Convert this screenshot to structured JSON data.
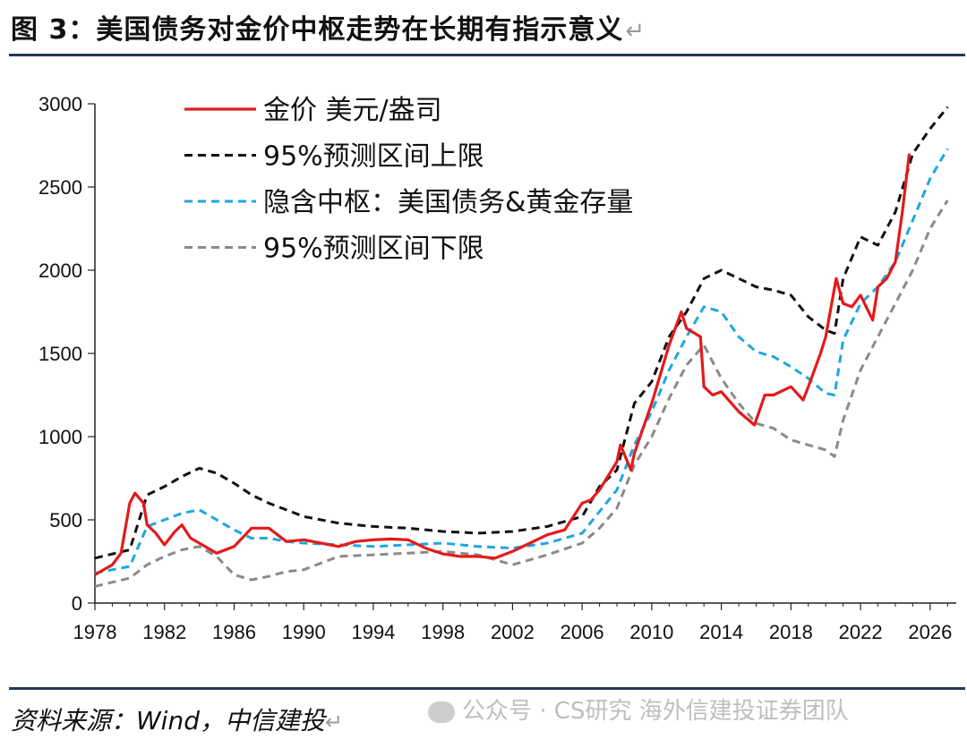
{
  "page": {
    "title": "图 3：美国债务对金价中枢走势在长期有指示意义",
    "title_return_mark": "↵",
    "source": "资料来源：Wind，中信建投",
    "source_return_mark": "↵",
    "watermark": "公众号 · CS研究 海外信建投证券团队"
  },
  "chart_data": {
    "type": "line",
    "title": "",
    "xlabel": "",
    "ylabel": "",
    "xlim": [
      1978,
      2027.5
    ],
    "ylim": [
      0,
      3000
    ],
    "x_ticks": [
      1978,
      1982,
      1986,
      1990,
      1994,
      1998,
      2002,
      2006,
      2010,
      2014,
      2018,
      2022,
      2026
    ],
    "y_ticks": [
      0,
      500,
      1000,
      1500,
      2000,
      2500,
      3000
    ],
    "grid": false,
    "legend_position": "top-center",
    "series": [
      {
        "name": "金价 美元/盎司",
        "color": "#e31a1c",
        "style": "solid",
        "x": [
          1978,
          1979,
          1979.5,
          1980,
          1980.3,
          1980.8,
          1981,
          1981.5,
          1982,
          1982.6,
          1983,
          1983.5,
          1984,
          1985,
          1986,
          1987,
          1988,
          1989,
          1990,
          1991,
          1992,
          1993,
          1994,
          1995,
          1996,
          1997,
          1998,
          1999,
          2000,
          2001,
          2002,
          2003,
          2004,
          2005,
          2006,
          2006.5,
          2007,
          2008,
          2008.2,
          2008.8,
          2009,
          2010,
          2011,
          2011.7,
          2012,
          2012.8,
          2013,
          2013.5,
          2014,
          2015,
          2015.9,
          2016.5,
          2017,
          2018,
          2018.7,
          2019,
          2019.7,
          2020,
          2020.6,
          2021,
          2021.5,
          2022,
          2022.7,
          2023,
          2023.5,
          2024,
          2024.4,
          2024.8
        ],
        "values": [
          170,
          230,
          300,
          600,
          660,
          600,
          470,
          420,
          350,
          430,
          470,
          390,
          360,
          300,
          340,
          450,
          450,
          370,
          380,
          360,
          340,
          370,
          380,
          385,
          380,
          330,
          295,
          280,
          280,
          270,
          310,
          360,
          410,
          440,
          600,
          620,
          680,
          850,
          950,
          800,
          900,
          1200,
          1550,
          1750,
          1650,
          1600,
          1300,
          1250,
          1270,
          1150,
          1070,
          1250,
          1250,
          1300,
          1220,
          1300,
          1500,
          1600,
          1950,
          1800,
          1780,
          1850,
          1700,
          1900,
          1950,
          2050,
          2350,
          2700
        ]
      },
      {
        "name": "95%预测区间上限",
        "color": "#111111",
        "style": "dashed",
        "x": [
          1978,
          1980,
          1981,
          1982,
          1983,
          1984,
          1985,
          1986,
          1987,
          1988,
          1989,
          1990,
          1992,
          1994,
          1996,
          1998,
          2000,
          2002,
          2004,
          2006,
          2007,
          2008,
          2009,
          2010,
          2011,
          2012,
          2013,
          2014,
          2015,
          2016,
          2017,
          2018,
          2019,
          2020,
          2020.5,
          2021,
          2022,
          2023,
          2024,
          2025,
          2026,
          2027
        ],
        "values": [
          270,
          320,
          650,
          700,
          760,
          810,
          780,
          720,
          650,
          600,
          560,
          520,
          480,
          460,
          450,
          430,
          420,
          430,
          460,
          520,
          700,
          800,
          1200,
          1330,
          1600,
          1750,
          1950,
          2000,
          1950,
          1900,
          1880,
          1850,
          1720,
          1640,
          1620,
          1950,
          2200,
          2150,
          2350,
          2700,
          2850,
          2980
        ]
      },
      {
        "name": "隐含中枢：美国债务&黄金存量",
        "color": "#1ea7e1",
        "style": "dashed",
        "x": [
          1978,
          1980,
          1981,
          1982,
          1983,
          1984,
          1985,
          1986,
          1987,
          1988,
          1989,
          1990,
          1992,
          1994,
          1996,
          1998,
          2000,
          2002,
          2004,
          2006,
          2007,
          2008,
          2009,
          2010,
          2011,
          2012,
          2013,
          2014,
          2015,
          2016,
          2017,
          2018,
          2019,
          2020,
          2020.5,
          2021,
          2022,
          2023,
          2024,
          2025,
          2026,
          2027
        ],
        "values": [
          180,
          220,
          460,
          500,
          540,
          560,
          500,
          440,
          390,
          390,
          370,
          360,
          350,
          340,
          350,
          360,
          340,
          330,
          360,
          420,
          550,
          680,
          950,
          1150,
          1400,
          1600,
          1780,
          1750,
          1600,
          1510,
          1480,
          1420,
          1350,
          1260,
          1250,
          1580,
          1800,
          1900,
          2050,
          2300,
          2550,
          2730
        ]
      },
      {
        "name": "95%预测区间下限",
        "color": "#8a8a8a",
        "style": "dashed",
        "x": [
          1978,
          1980,
          1981,
          1982,
          1983,
          1984,
          1985,
          1986,
          1987,
          1988,
          1989,
          1990,
          1992,
          1994,
          1996,
          1998,
          2000,
          2002,
          2004,
          2006,
          2007,
          2008,
          2009,
          2010,
          2011,
          2012,
          2013,
          2014,
          2015,
          2016,
          2017,
          2018,
          2019,
          2020,
          2020.5,
          2021,
          2022,
          2023,
          2024,
          2025,
          2026,
          2027
        ],
        "values": [
          100,
          150,
          230,
          280,
          320,
          340,
          280,
          170,
          140,
          160,
          190,
          200,
          280,
          290,
          300,
          310,
          290,
          230,
          290,
          360,
          450,
          570,
          830,
          1000,
          1230,
          1430,
          1550,
          1350,
          1200,
          1080,
          1050,
          980,
          950,
          920,
          880,
          1100,
          1400,
          1600,
          1800,
          2000,
          2250,
          2420
        ]
      }
    ]
  }
}
